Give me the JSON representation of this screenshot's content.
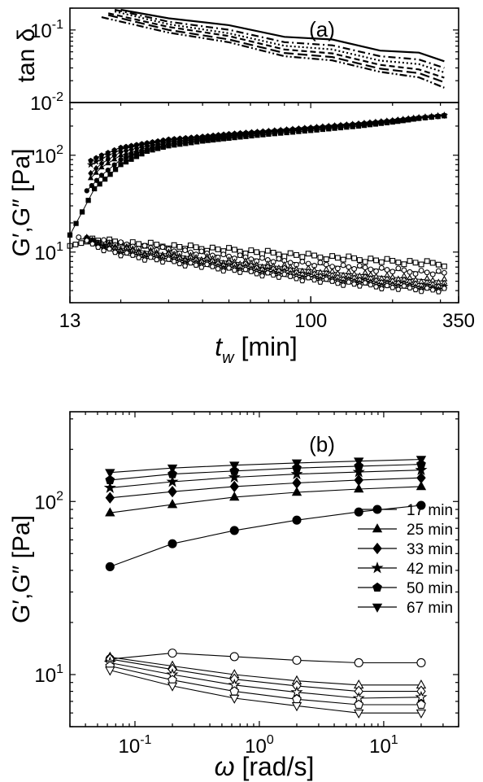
{
  "chart_data": [
    {
      "type": "line",
      "panel_label": "(a)",
      "subplots": [
        {
          "id": "tan_delta",
          "ylabel": "tan δ",
          "yscale": "log",
          "ylim": [
            0.01,
            0.2
          ],
          "yticks": [
            {
              "v": 0.01,
              "base": "10",
              "exp": "-2"
            },
            {
              "v": 0.1,
              "base": "10",
              "exp": "-1"
            }
          ],
          "series": [
            {
              "dash": "solid",
              "x": [
                20,
                30,
                50,
                80,
                120,
                180,
                250,
                310
              ],
              "y": [
                0.19,
                0.145,
                0.11,
                0.085,
                0.07,
                0.055,
                0.046,
                0.037
              ]
            },
            {
              "dash": "dashdot",
              "x": [
                19,
                30,
                50,
                80,
                120,
                180,
                250,
                310
              ],
              "y": [
                0.19,
                0.13,
                0.095,
                0.072,
                0.058,
                0.046,
                0.037,
                0.03
              ]
            },
            {
              "dash": "dot",
              "x": [
                19,
                30,
                50,
                80,
                120,
                180,
                250,
                310
              ],
              "y": [
                0.18,
                0.12,
                0.085,
                0.064,
                0.051,
                0.04,
                0.032,
                0.026
              ]
            },
            {
              "dash": "dash",
              "x": [
                18,
                30,
                50,
                80,
                120,
                180,
                250,
                310
              ],
              "y": [
                0.17,
                0.11,
                0.078,
                0.057,
                0.045,
                0.035,
                0.027,
                0.022
              ]
            },
            {
              "dash": "longdash",
              "x": [
                18,
                30,
                50,
                80,
                120,
                180,
                250,
                310
              ],
              "y": [
                0.16,
                0.1,
                0.07,
                0.051,
                0.04,
                0.031,
                0.024,
                0.019
              ]
            },
            {
              "dash": "dashdotdot",
              "x": [
                17,
                30,
                50,
                80,
                120,
                180,
                250,
                310
              ],
              "y": [
                0.15,
                0.092,
                0.064,
                0.046,
                0.036,
                0.028,
                0.021,
                0.016
              ]
            }
          ]
        },
        {
          "id": "moduli_time",
          "ylabel": "G′,G″ [Pa]",
          "xlabel": "t_w [min]",
          "xscale": "log",
          "xlim": [
            13,
            350
          ],
          "xticks": [
            "13",
            "100",
            "350"
          ],
          "yscale": "log",
          "ylim": [
            3,
            350
          ],
          "yticks": [
            {
              "v": 10,
              "base": "10",
              "exp": "1"
            },
            {
              "v": 100,
              "base": "10",
              "exp": "2"
            }
          ],
          "series": [
            {
              "modulus": "G'",
              "marker": "square",
              "filled": true,
              "x": [
                13,
                16,
                20,
                25,
                30,
                40,
                50,
                70,
                100,
                150,
                200,
                250,
                310
              ],
              "y": [
                15,
                45,
                80,
                110,
                125,
                140,
                150,
                165,
                180,
                200,
                220,
                240,
                255
              ]
            },
            {
              "modulus": "G'",
              "marker": "circle",
              "filled": true,
              "x": [
                15,
                17,
                20,
                25,
                30,
                40,
                50,
                70,
                100,
                150,
                200,
                250,
                310
              ],
              "y": [
                43,
                62,
                90,
                115,
                130,
                145,
                155,
                170,
                185,
                205,
                222,
                240,
                255
              ]
            },
            {
              "modulus": "G'",
              "marker": "triangle",
              "filled": true,
              "x": [
                15.5,
                17,
                20,
                25,
                30,
                40,
                50,
                70,
                100,
                150,
                200,
                250,
                310
              ],
              "y": [
                58,
                75,
                100,
                120,
                135,
                148,
                158,
                172,
                187,
                207,
                224,
                242,
                256
              ]
            },
            {
              "modulus": "G'",
              "marker": "diamond",
              "filled": true,
              "x": [
                15.5,
                17,
                20,
                25,
                30,
                40,
                50,
                70,
                100,
                150,
                200,
                250,
                310
              ],
              "y": [
                65,
                82,
                108,
                125,
                138,
                150,
                160,
                174,
                189,
                208,
                225,
                243,
                257
              ]
            },
            {
              "modulus": "G'",
              "marker": "star",
              "filled": true,
              "x": [
                15.5,
                17,
                20,
                25,
                30,
                40,
                50,
                70,
                100,
                150,
                200,
                250,
                310
              ],
              "y": [
                80,
                92,
                115,
                130,
                142,
                153,
                163,
                176,
                191,
                210,
                227,
                244,
                258
              ]
            },
            {
              "modulus": "G'",
              "marker": "pentagon",
              "filled": true,
              "x": [
                15.5,
                17,
                20,
                25,
                30,
                40,
                50,
                70,
                100,
                150,
                200,
                250,
                310
              ],
              "y": [
                88,
                100,
                120,
                134,
                146,
                156,
                166,
                178,
                193,
                212,
                229,
                245,
                259
              ]
            },
            {
              "modulus": "G\"",
              "marker": "square",
              "filled": false,
              "x": [
                13,
                15,
                20,
                30,
                50,
                80,
                120,
                200,
                310
              ],
              "y": [
                11,
                13.5,
                12.5,
                11.5,
                10.5,
                9.5,
                8.8,
                8,
                7.5
              ]
            },
            {
              "modulus": "G\"",
              "marker": "circle",
              "filled": false,
              "x": [
                14,
                15,
                20,
                30,
                50,
                80,
                120,
                200,
                310
              ],
              "y": [
                13.5,
                13.8,
                12,
                10.5,
                9,
                8,
                7.2,
                6.5,
                6
              ]
            },
            {
              "modulus": "G\"",
              "marker": "triangle",
              "filled": false,
              "x": [
                15,
                20,
                30,
                50,
                80,
                120,
                200,
                310
              ],
              "y": [
                13.5,
                11,
                9.5,
                8,
                7,
                6.2,
                5.5,
                5
              ]
            },
            {
              "modulus": "G\"",
              "marker": "diamond",
              "filled": false,
              "x": [
                15,
                20,
                30,
                50,
                80,
                120,
                200,
                310
              ],
              "y": [
                13,
                10.5,
                9,
                7.5,
                6.5,
                5.6,
                5,
                4.5
              ]
            },
            {
              "modulus": "G\"",
              "marker": "star",
              "filled": false,
              "x": [
                15,
                20,
                30,
                50,
                80,
                120,
                200,
                310
              ],
              "y": [
                13,
                10,
                8.5,
                7,
                6,
                5.2,
                4.6,
                4.2
              ]
            },
            {
              "modulus": "G\"",
              "marker": "pentagon",
              "filled": false,
              "x": [
                15,
                20,
                30,
                50,
                80,
                120,
                200,
                310
              ],
              "y": [
                12.5,
                9.5,
                8,
                6.6,
                5.6,
                4.9,
                4.3,
                4
              ]
            }
          ]
        }
      ]
    },
    {
      "type": "line",
      "panel_label": "(b)",
      "xlabel": "ω [rad/s]",
      "ylabel": "G′,G″ [Pa]",
      "xscale": "log",
      "xlim": [
        0.03,
        40
      ],
      "xticks": [
        {
          "v": 0.1,
          "base": "10",
          "exp": "-1"
        },
        {
          "v": 1,
          "base": "10",
          "exp": "0"
        },
        {
          "v": 10,
          "base": "10",
          "exp": "1"
        }
      ],
      "yscale": "log",
      "ylim": [
        5,
        330
      ],
      "yticks": [
        {
          "v": 10,
          "base": "10",
          "exp": "1"
        },
        {
          "v": 100,
          "base": "10",
          "exp": "2"
        }
      ],
      "legend_position": "right",
      "x": [
        0.063,
        0.2,
        0.63,
        2,
        6.3,
        20
      ],
      "series": [
        {
          "name": "17 min",
          "marker": "circle",
          "Gp": [
            42,
            57,
            68,
            78,
            87,
            95
          ],
          "Gpp": [
            12.3,
            13.3,
            12.7,
            12.1,
            11.7,
            11.7
          ]
        },
        {
          "name": "25 min",
          "marker": "triangle",
          "Gp": [
            86,
            96,
            106,
            113,
            118,
            122
          ],
          "Gpp": [
            12.6,
            11.2,
            10,
            9.2,
            8.7,
            8.7
          ]
        },
        {
          "name": "33 min",
          "marker": "diamond",
          "Gp": [
            105,
            114,
            122,
            128,
            133,
            137
          ],
          "Gpp": [
            12.3,
            10.7,
            9.4,
            8.6,
            8,
            8
          ]
        },
        {
          "name": "42 min",
          "marker": "star",
          "Gp": [
            120,
            130,
            138,
            144,
            148,
            152
          ],
          "Gpp": [
            11.7,
            10,
            8.7,
            7.9,
            7.3,
            7.4
          ]
        },
        {
          "name": "50 min",
          "marker": "pentagon",
          "Gp": [
            133,
            144,
            150,
            156,
            160,
            164
          ],
          "Gpp": [
            11.2,
            9.3,
            8,
            7.2,
            6.7,
            6.7
          ]
        },
        {
          "name": "67 min",
          "marker": "triangle-down",
          "Gp": [
            147,
            156,
            162,
            167,
            171,
            175
          ],
          "Gpp": [
            10.6,
            8.6,
            7.3,
            6.6,
            6,
            6
          ]
        }
      ]
    }
  ]
}
